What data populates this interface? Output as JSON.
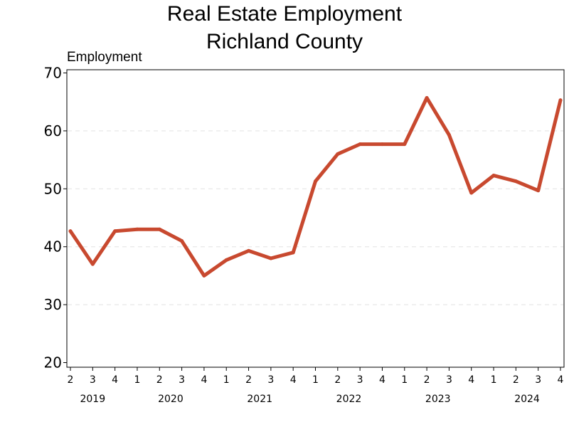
{
  "chart_data": {
    "type": "line",
    "title": [
      "Real Estate Employment",
      "Richland County"
    ],
    "ylabel": "Employment",
    "xlabel": "",
    "ylim": [
      20,
      70
    ],
    "yticks": [
      20,
      30,
      40,
      50,
      60,
      70
    ],
    "grid": "horizontal-dashed",
    "x": [
      {
        "year": "2019",
        "quarter": "2"
      },
      {
        "year": "2019",
        "quarter": "3"
      },
      {
        "year": "2019",
        "quarter": "4"
      },
      {
        "year": "2020",
        "quarter": "1"
      },
      {
        "year": "2020",
        "quarter": "2"
      },
      {
        "year": "2020",
        "quarter": "3"
      },
      {
        "year": "2020",
        "quarter": "4"
      },
      {
        "year": "2021",
        "quarter": "1"
      },
      {
        "year": "2021",
        "quarter": "2"
      },
      {
        "year": "2021",
        "quarter": "3"
      },
      {
        "year": "2021",
        "quarter": "4"
      },
      {
        "year": "2022",
        "quarter": "1"
      },
      {
        "year": "2022",
        "quarter": "2"
      },
      {
        "year": "2022",
        "quarter": "3"
      },
      {
        "year": "2022",
        "quarter": "4"
      },
      {
        "year": "2023",
        "quarter": "1"
      },
      {
        "year": "2023",
        "quarter": "2"
      },
      {
        "year": "2023",
        "quarter": "3"
      },
      {
        "year": "2023",
        "quarter": "4"
      },
      {
        "year": "2024",
        "quarter": "1"
      },
      {
        "year": "2024",
        "quarter": "2"
      },
      {
        "year": "2024",
        "quarter": "3"
      },
      {
        "year": "2024",
        "quarter": "4"
      }
    ],
    "year_labels": [
      "2019",
      "2020",
      "2021",
      "2022",
      "2023",
      "2024"
    ],
    "series": [
      {
        "color": "#c8492f",
        "values": [
          42.7,
          37.0,
          42.7,
          43.0,
          43.0,
          41.0,
          35.0,
          37.7,
          39.3,
          38.0,
          39.0,
          51.3,
          56.0,
          57.7,
          57.7,
          57.7,
          65.7,
          59.3,
          49.3,
          52.3,
          51.3,
          49.7,
          65.3
        ]
      }
    ]
  }
}
